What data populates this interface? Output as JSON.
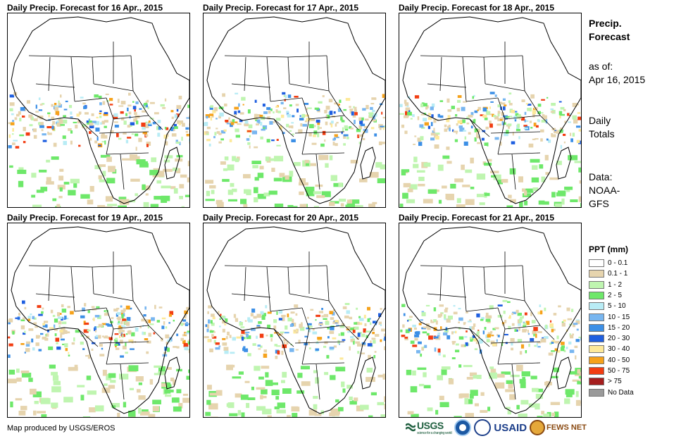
{
  "panels": [
    {
      "title": "Daily Precip. Forecast for 16 Apr., 2015"
    },
    {
      "title": "Daily Precip. Forecast for 17 Apr., 2015"
    },
    {
      "title": "Daily Precip. Forecast for 18 Apr., 2015"
    },
    {
      "title": "Daily Precip. Forecast for 19 Apr., 2015"
    },
    {
      "title": "Daily Precip. Forecast for 20 Apr., 2015"
    },
    {
      "title": "Daily Precip. Forecast for 21 Apr., 2015"
    }
  ],
  "side_info": {
    "heading_line1": "Precip.",
    "heading_line2": "Forecast",
    "asof_line1": "as of:",
    "asof_line2": "Apr 16, 2015",
    "totals_line1": "Daily",
    "totals_line2": "Totals",
    "data_line1": "Data:",
    "data_line2": "NOAA-",
    "data_line3": "GFS"
  },
  "legend": {
    "title": "PPT (mm)",
    "items": [
      {
        "label": "0 - 0.1",
        "color": "#ffffff"
      },
      {
        "label": "0.1 - 1",
        "color": "#e6d4ae"
      },
      {
        "label": "1 - 2",
        "color": "#bff5b0"
      },
      {
        "label": "2 - 5",
        "color": "#6ee86a"
      },
      {
        "label": "5 - 10",
        "color": "#b8ecf5"
      },
      {
        "label": "10 - 15",
        "color": "#78b6f0"
      },
      {
        "label": "15 - 20",
        "color": "#3c8fe6"
      },
      {
        "label": "20 - 30",
        "color": "#1f5fe0"
      },
      {
        "label": "30 - 40",
        "color": "#fde99a"
      },
      {
        "label": "40 - 50",
        "color": "#f6a21b"
      },
      {
        "label": "50 - 75",
        "color": "#f23d12"
      },
      {
        "label": "> 75",
        "color": "#a51d1d"
      },
      {
        "label": "No Data",
        "color": "#9a9a9a"
      }
    ]
  },
  "footer": {
    "credit": "Map produced by USGS/EROS"
  },
  "logos": {
    "usgs": "USGS",
    "usgs_tagline": "science for a changing world",
    "usaid": "USAID",
    "fews": "FEWS NET"
  }
}
